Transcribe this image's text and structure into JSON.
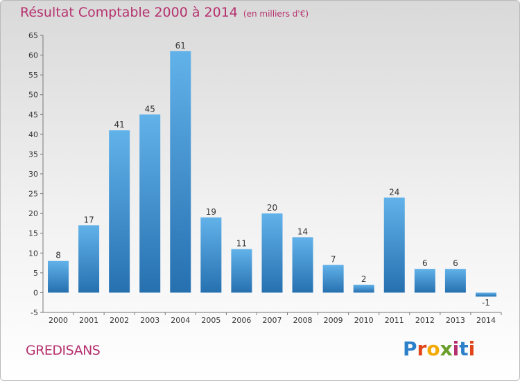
{
  "header": {
    "title": "Résultat Comptable 2000 à 2014",
    "unit": "(en milliers d'€)"
  },
  "footer": {
    "commune": "GREDISANS",
    "logo_letters": [
      "P",
      "r",
      "o",
      "x",
      "i",
      "t",
      "i"
    ]
  },
  "colors": {
    "title": "#b5306e",
    "bar_top": "#62b2ea",
    "bar_bottom": "#2670b0",
    "logo": [
      "#2c7fc9",
      "#e0451b",
      "#f2a900",
      "#6a9e2a",
      "#b5306e",
      "#2c7fc9",
      "#e0451b"
    ]
  },
  "chart_data": {
    "type": "bar",
    "categories": [
      "2000",
      "2001",
      "2002",
      "2003",
      "2004",
      "2005",
      "2006",
      "2007",
      "2008",
      "2009",
      "2010",
      "2011",
      "2012",
      "2013",
      "2014"
    ],
    "values": [
      8,
      17,
      41,
      45,
      61,
      19,
      11,
      20,
      14,
      7,
      2,
      24,
      6,
      6,
      -1
    ],
    "title": "Résultat Comptable 2000 à 2014",
    "ylim": [
      -5,
      65
    ],
    "yticks": [
      -5,
      0,
      5,
      10,
      15,
      20,
      25,
      30,
      35,
      40,
      45,
      50,
      55,
      60,
      65
    ],
    "grid": false,
    "legend": "none"
  }
}
